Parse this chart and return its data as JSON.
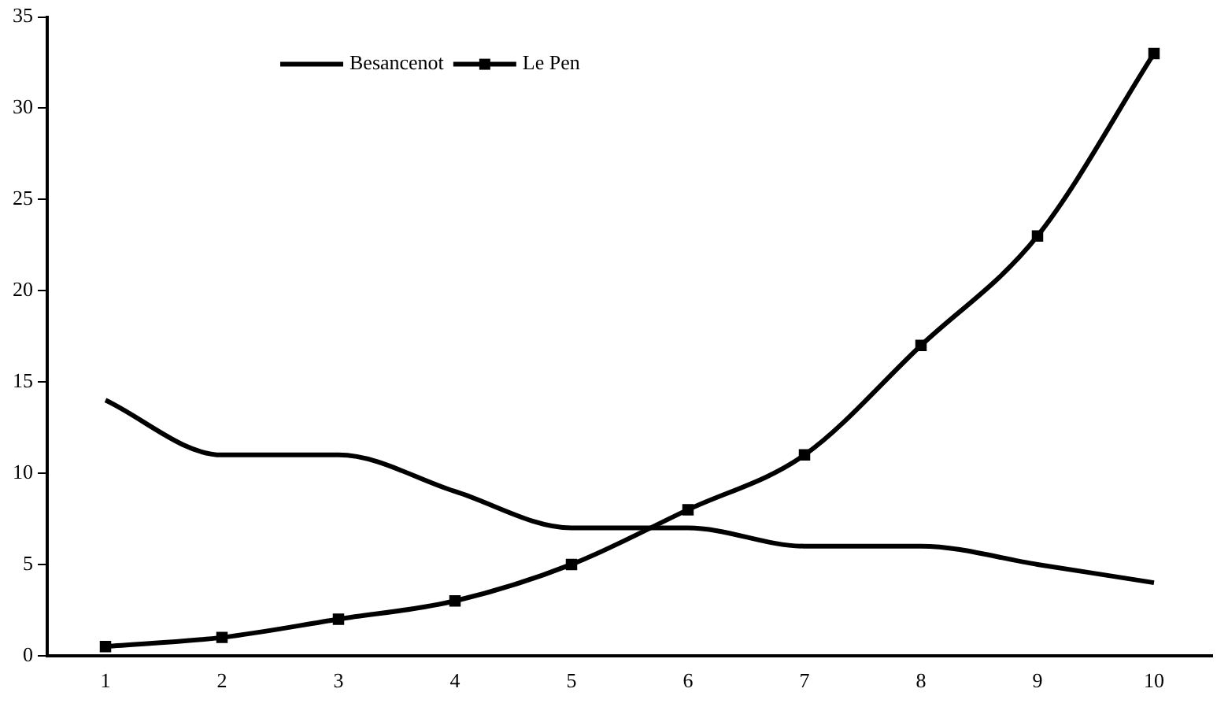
{
  "chart_data": {
    "type": "line",
    "categories": [
      "1",
      "2",
      "3",
      "4",
      "5",
      "6",
      "7",
      "8",
      "9",
      "10"
    ],
    "series": [
      {
        "name": "Besancenot",
        "color": "#000000",
        "marker": "none",
        "values": [
          14,
          11,
          11,
          9,
          7,
          7,
          6,
          6,
          5,
          4
        ]
      },
      {
        "name": "Le Pen",
        "color": "#000000",
        "marker": "square",
        "values": [
          0.5,
          1,
          2,
          3,
          5,
          8,
          11,
          17,
          23,
          33
        ]
      }
    ],
    "ylim": [
      0,
      35
    ],
    "yticks": [
      0,
      5,
      10,
      15,
      20,
      25,
      30,
      35
    ],
    "grid": false,
    "legend": "top",
    "line_style": "solid"
  }
}
